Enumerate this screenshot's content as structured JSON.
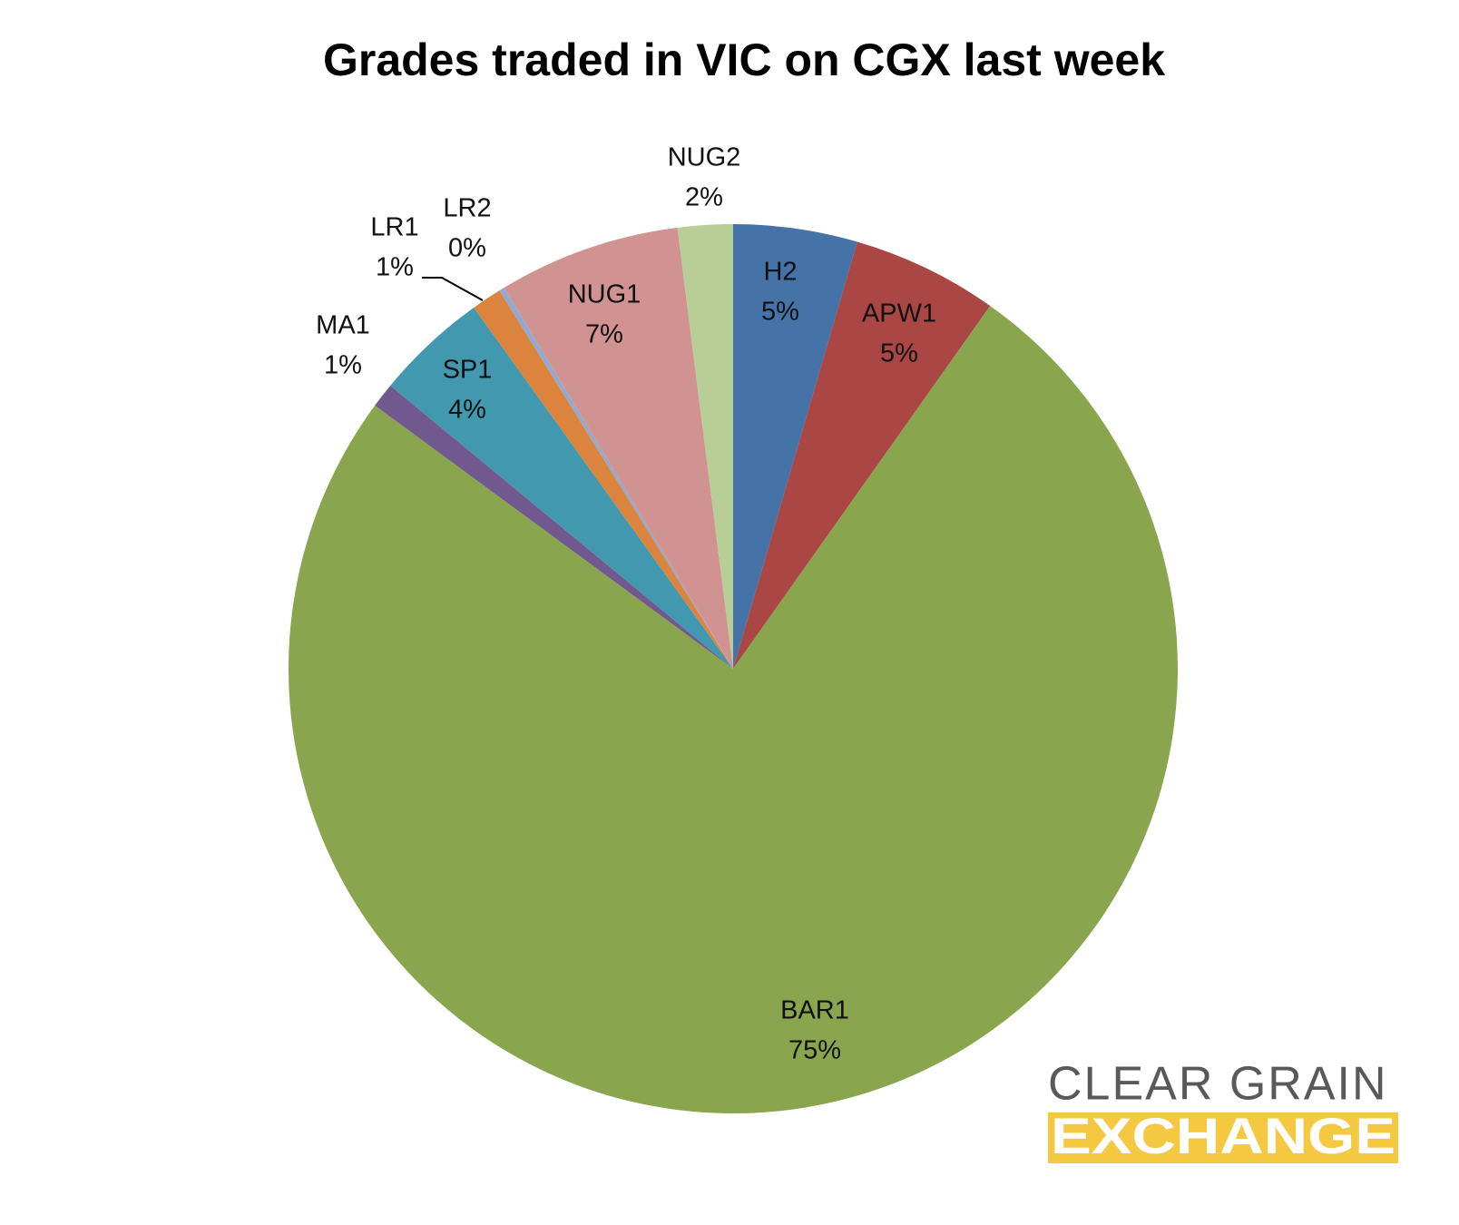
{
  "chart_data": {
    "type": "pie",
    "title": "Grades traded in VIC on CGX last week",
    "categories": [
      "H2",
      "APW1",
      "BAR1",
      "MA1",
      "SP1",
      "LR1",
      "LR2",
      "NUG1",
      "NUG2"
    ],
    "values": [
      4.5,
      5.3,
      75.2,
      0.9,
      4.1,
      1.1,
      0.2,
      6.6,
      2.0
    ],
    "value_labels": [
      "5%",
      "5%",
      "75%",
      "1%",
      "4%",
      "1%",
      "0%",
      "7%",
      "2%"
    ],
    "colors": [
      "#4572a7",
      "#aa4643",
      "#89a54e",
      "#71588f",
      "#4198af",
      "#db843d",
      "#93a9cf",
      "#d19392",
      "#b9cd96"
    ]
  },
  "logo": {
    "line1": "CLEAR GRAIN",
    "line2": "EXCHANGE"
  }
}
